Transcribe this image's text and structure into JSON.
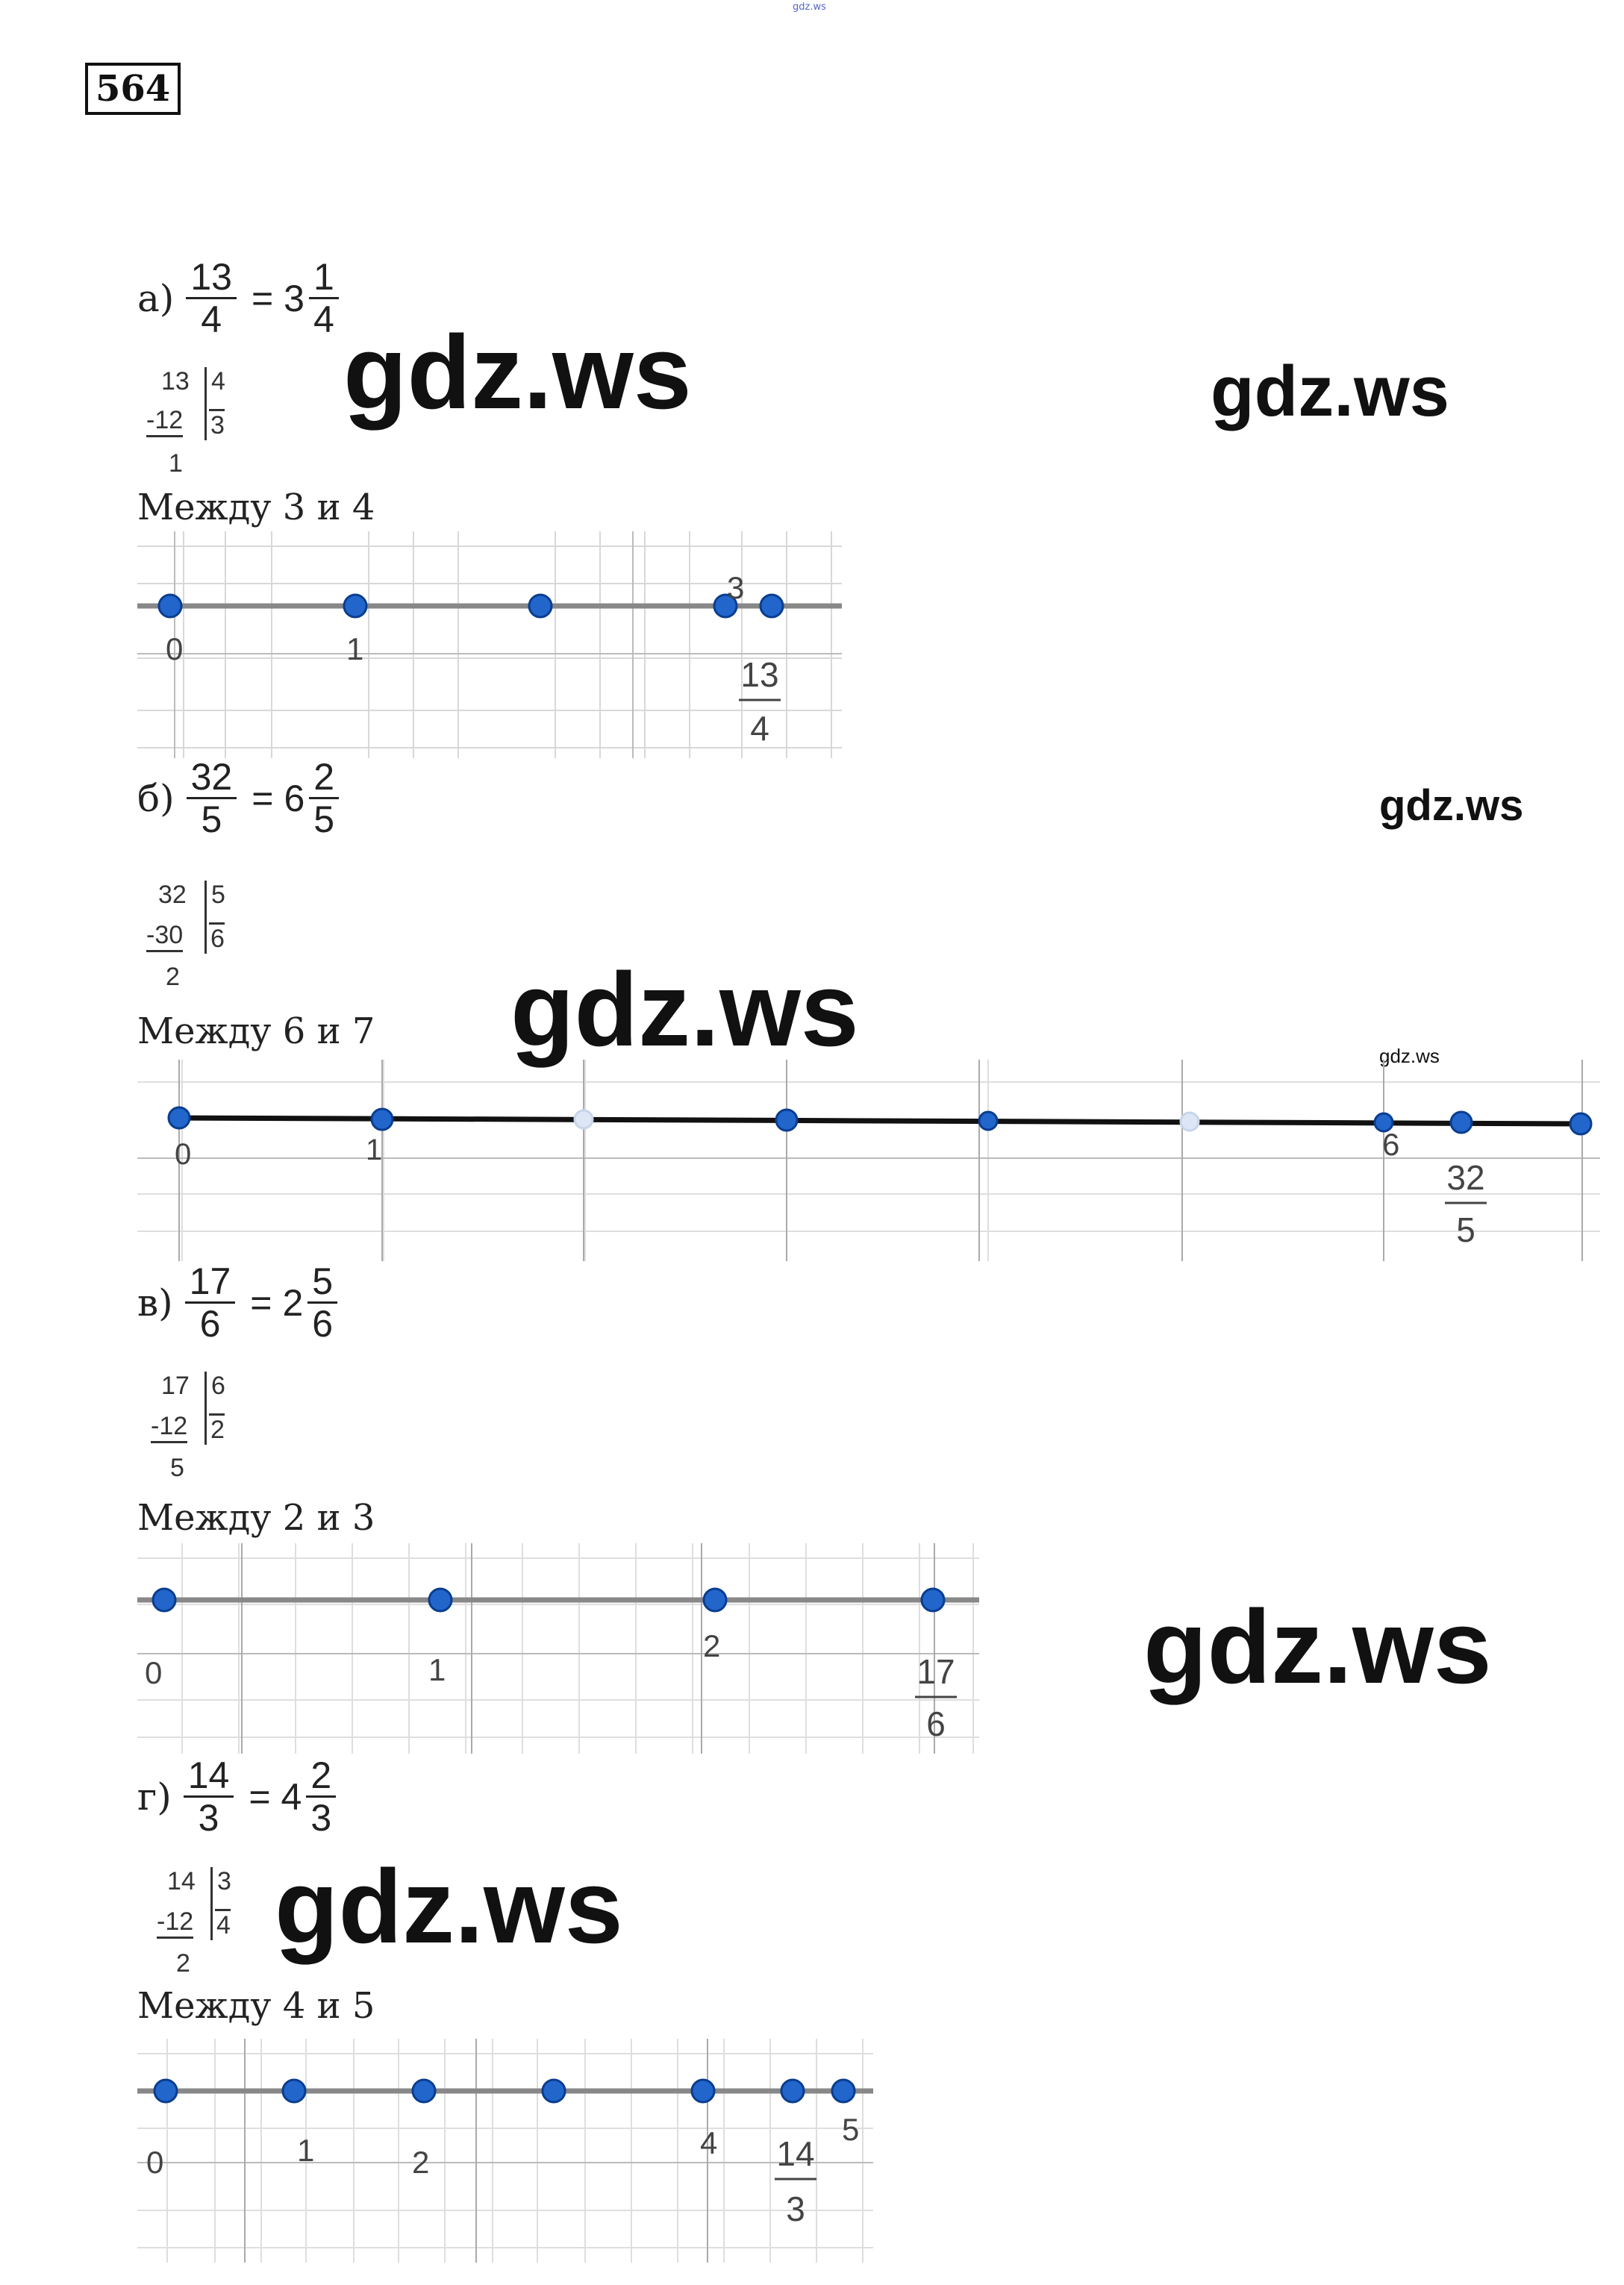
{
  "header": {
    "small_watermark": "gdz.ws",
    "task_number": "564"
  },
  "watermarks": [
    "gdz.ws",
    "gdz.ws",
    "gdz.ws",
    "gdz.ws",
    "gdz.ws",
    "gdz.ws",
    "gdz.ws"
  ],
  "parts": [
    {
      "label": "а)",
      "num": "13",
      "den": "4",
      "eq": "=",
      "whole": "3",
      "fnum": "1",
      "fden": "4",
      "ldiv": {
        "dividend": "13",
        "divisor": "4",
        "sub": "-12",
        "quotient": "3",
        "rem": "1"
      },
      "between": "Между 3 и 4",
      "line": {
        "ticks": [
          {
            "text": "0"
          },
          {
            "text": "1"
          },
          {
            "text": "3"
          }
        ],
        "frac_num": "13",
        "frac_den": "4"
      }
    },
    {
      "label": "б)",
      "num": "32",
      "den": "5",
      "eq": "=",
      "whole": "6",
      "fnum": "2",
      "fden": "5",
      "ldiv": {
        "dividend": "32",
        "divisor": "5",
        "sub": "-30",
        "quotient": "6",
        "rem": "2"
      },
      "between": "Между 6 и 7",
      "line": {
        "ticks": [
          {
            "text": "0"
          },
          {
            "text": "1"
          },
          {
            "text": "6"
          }
        ],
        "frac_num": "32",
        "frac_den": "5"
      }
    },
    {
      "label": "в)",
      "num": "17",
      "den": "6",
      "eq": "=",
      "whole": "2",
      "fnum": "5",
      "fden": "6",
      "ldiv": {
        "dividend": "17",
        "divisor": "6",
        "sub": "-12",
        "quotient": "2",
        "rem": "5"
      },
      "between": "Между 2 и 3",
      "line": {
        "ticks": [
          {
            "text": "0"
          },
          {
            "text": "1"
          },
          {
            "text": "2"
          }
        ],
        "frac_num": "17",
        "frac_den": "6"
      }
    },
    {
      "label": "г)",
      "num": "14",
      "den": "3",
      "eq": "=",
      "whole": "4",
      "fnum": "2",
      "fden": "3",
      "ldiv": {
        "dividend": "14",
        "divisor": "3",
        "sub": "-12",
        "quotient": "4",
        "rem": "2"
      },
      "between": "Между 4 и 5",
      "line": {
        "ticks": [
          {
            "text": "0"
          },
          {
            "text": "1"
          },
          {
            "text": "2"
          },
          {
            "text": "4"
          },
          {
            "text": "5"
          }
        ],
        "frac_num": "14",
        "frac_den": "3"
      }
    }
  ],
  "colors": {
    "point": "#2266cc",
    "point_stroke": "#0a3d8f",
    "axis": "#888888",
    "grid": "#d8d8d8",
    "text": "#222222"
  }
}
